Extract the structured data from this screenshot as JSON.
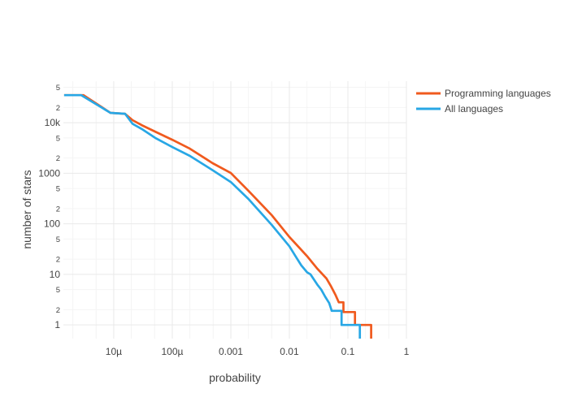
{
  "chart_data": {
    "type": "line",
    "title": "",
    "xlabel": "probability",
    "ylabel": "number of stars",
    "x_scale": "log",
    "y_scale": "log",
    "x_range_log10": [
      -5.86,
      0
    ],
    "y_range_log10": [
      -0.27,
      4.82
    ],
    "grid": true,
    "legend_position": "top-right-outside",
    "x_axis": {
      "major_ticks": [
        1e-05,
        0.0001,
        0.001,
        0.01,
        0.1,
        1
      ],
      "major_labels": [
        "10µ",
        "100µ",
        "0.001",
        "0.01",
        "0.1",
        "1"
      ],
      "minor_ticks": [
        2e-06,
        5e-06,
        2e-05,
        5e-05,
        0.0002,
        0.0005,
        0.002,
        0.005,
        0.02,
        0.05,
        0.2,
        0.5
      ]
    },
    "y_axis": {
      "major_ticks": [
        10000,
        1000,
        100,
        10,
        1
      ],
      "major_labels": [
        "10k",
        "1000",
        "100",
        "10",
        "1"
      ],
      "minor_ticks": [
        50000,
        20000,
        5000,
        2000,
        500,
        200,
        50,
        20,
        5,
        2
      ],
      "minor_labels": [
        "5",
        "2",
        "5",
        "2",
        "5",
        "2",
        "5",
        "2",
        "5",
        "2"
      ]
    },
    "series": [
      {
        "name": "Programming languages",
        "color": "#f05a1e",
        "x": [
          1.42e-06,
          3.05e-06,
          8.8e-06,
          1.56e-05,
          2.1e-05,
          3e-05,
          5.1e-05,
          0.0001,
          0.0002,
          0.00049,
          0.001,
          0.002,
          0.005,
          0.01,
          0.015,
          0.02,
          0.03,
          0.043,
          0.052,
          0.061,
          0.07,
          0.084,
          0.084,
          0.132,
          0.132,
          0.25,
          0.25
        ],
        "y": [
          35000,
          35000,
          15600,
          15000,
          11200,
          8950,
          6650,
          4600,
          3060,
          1580,
          1010,
          450,
          148,
          55,
          33,
          23,
          13,
          8.3,
          5.7,
          4.0,
          2.8,
          2.8,
          1.8,
          1.8,
          1.0,
          1.0,
          0.52
        ]
      },
      {
        "name": "All languages",
        "color": "#28a7e5",
        "x": [
          1.42e-06,
          2.78e-06,
          8.8e-06,
          1.56e-05,
          2.1e-05,
          3e-05,
          5.1e-05,
          0.0001,
          0.0002,
          0.00049,
          0.001,
          0.002,
          0.005,
          0.01,
          0.013,
          0.016,
          0.02,
          0.023,
          0.03,
          0.035,
          0.041,
          0.048,
          0.053,
          0.078,
          0.078,
          0.16,
          0.16
        ],
        "y": [
          35000,
          35000,
          15600,
          15000,
          9500,
          7500,
          5000,
          3300,
          2200,
          1150,
          670,
          310,
          95,
          36,
          22,
          15,
          11,
          10,
          6.3,
          5.0,
          3.6,
          2.7,
          1.9,
          1.9,
          1.0,
          1.0,
          0.52
        ]
      }
    ],
    "legend": {
      "items": [
        "Programming languages",
        "All languages"
      ]
    }
  },
  "colors": {
    "text": "#444444",
    "grid_major": "#e9e9e9",
    "grid_minor": "#f4f4f4",
    "background": "#ffffff"
  }
}
